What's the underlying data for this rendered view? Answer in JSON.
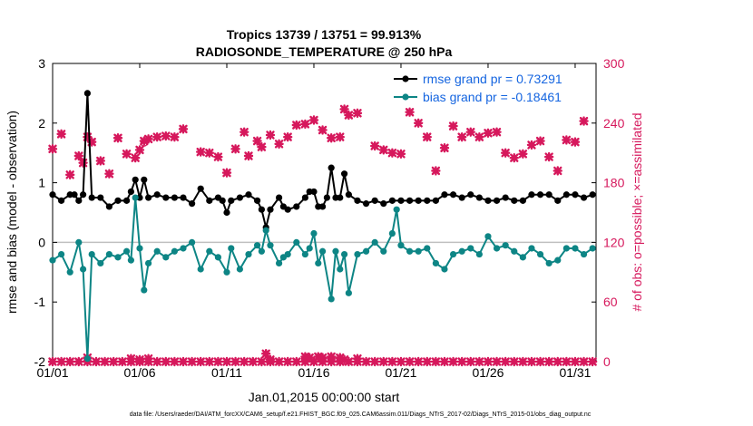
{
  "chart_data": {
    "type": "line",
    "title": "Tropics 13739 / 13751 = 99.913%",
    "subtitle": "RADIOSONDE_TEMPERATURE @ 250 hPa",
    "xlabel": "Jan.01,2015 00:00:00 start",
    "ylabel": "rmse and bias (model - observation)",
    "y2label": "# of obs: o=possible; ×=assimilated",
    "footnote": "data file: /Users/raeder/DAI/ATM_forcXX/CAM6_setup/f.e21.FHIST_BGC.f09_025.CAM6assim.011/Diags_NTrS_2017-02/Diags_NTrS_2015-01/obs_diag_output.nc",
    "xlim": [
      1,
      32.2
    ],
    "ylim": [
      -2,
      3
    ],
    "y2lim": [
      0,
      300
    ],
    "x_tick_values": [
      1,
      6,
      11,
      16,
      21,
      26,
      31
    ],
    "x_tick_labels": [
      "01/01",
      "01/06",
      "01/11",
      "01/16",
      "01/21",
      "01/26",
      "01/31"
    ],
    "y_ticks": [
      "3",
      "2",
      "1",
      "0",
      "-1",
      "-2"
    ],
    "y2_ticks": [
      "300",
      "240",
      "180",
      "120",
      "60",
      "0"
    ],
    "legend_position": "top-right",
    "colors": {
      "rmse": "#000000",
      "bias": "#0d8585",
      "obs": "#d6185c",
      "legend_text": "#1565e0",
      "zero_line": "#bfbfbf"
    },
    "series": [
      {
        "name": "rmse grand pr = 0.73291",
        "axis": "left",
        "color": "#000000",
        "points": [
          [
            1.0,
            0.8
          ],
          [
            1.5,
            0.7
          ],
          [
            2.0,
            0.8
          ],
          [
            2.25,
            0.8
          ],
          [
            2.5,
            0.7
          ],
          [
            2.75,
            0.8
          ],
          [
            3.0,
            2.5
          ],
          [
            3.25,
            0.75
          ],
          [
            3.75,
            0.75
          ],
          [
            4.25,
            0.6
          ],
          [
            4.75,
            0.7
          ],
          [
            5.25,
            0.7
          ],
          [
            5.5,
            0.85
          ],
          [
            5.75,
            1.05
          ],
          [
            6.0,
            0.75
          ],
          [
            6.25,
            1.05
          ],
          [
            6.5,
            0.75
          ],
          [
            7.0,
            0.8
          ],
          [
            7.5,
            0.75
          ],
          [
            8.0,
            0.75
          ],
          [
            8.5,
            0.75
          ],
          [
            9.0,
            0.65
          ],
          [
            9.5,
            0.9
          ],
          [
            10.0,
            0.7
          ],
          [
            10.5,
            0.75
          ],
          [
            10.75,
            0.7
          ],
          [
            11.0,
            0.5
          ],
          [
            11.25,
            0.7
          ],
          [
            11.75,
            0.75
          ],
          [
            12.25,
            0.8
          ],
          [
            12.75,
            0.7
          ],
          [
            13.0,
            0.55
          ],
          [
            13.25,
            0.25
          ],
          [
            13.5,
            0.55
          ],
          [
            14.0,
            0.75
          ],
          [
            14.25,
            0.6
          ],
          [
            14.5,
            0.55
          ],
          [
            15.0,
            0.6
          ],
          [
            15.5,
            0.75
          ],
          [
            15.75,
            0.85
          ],
          [
            16.0,
            0.85
          ],
          [
            16.25,
            0.6
          ],
          [
            16.5,
            0.6
          ],
          [
            16.75,
            0.75
          ],
          [
            17.0,
            1.25
          ],
          [
            17.25,
            0.75
          ],
          [
            17.5,
            0.75
          ],
          [
            17.75,
            1.15
          ],
          [
            18.0,
            0.8
          ],
          [
            18.5,
            0.7
          ],
          [
            19.0,
            0.65
          ],
          [
            19.5,
            0.7
          ],
          [
            20.0,
            0.65
          ],
          [
            20.5,
            0.7
          ],
          [
            21.0,
            0.7
          ],
          [
            21.5,
            0.7
          ],
          [
            22.0,
            0.7
          ],
          [
            22.5,
            0.7
          ],
          [
            23.0,
            0.7
          ],
          [
            23.5,
            0.8
          ],
          [
            24.0,
            0.8
          ],
          [
            24.5,
            0.75
          ],
          [
            25.0,
            0.8
          ],
          [
            25.5,
            0.75
          ],
          [
            26.0,
            0.7
          ],
          [
            26.5,
            0.7
          ],
          [
            27.0,
            0.75
          ],
          [
            27.5,
            0.7
          ],
          [
            28.0,
            0.7
          ],
          [
            28.5,
            0.8
          ],
          [
            29.0,
            0.8
          ],
          [
            29.5,
            0.8
          ],
          [
            30.0,
            0.7
          ],
          [
            30.5,
            0.8
          ],
          [
            31.0,
            0.8
          ],
          [
            31.5,
            0.75
          ],
          [
            32.0,
            0.8
          ]
        ]
      },
      {
        "name": "bias grand pr = -0.18461",
        "axis": "left",
        "color": "#0d8585",
        "points": [
          [
            1.0,
            -0.3
          ],
          [
            1.5,
            -0.2
          ],
          [
            2.0,
            -0.5
          ],
          [
            2.5,
            0.0
          ],
          [
            2.75,
            -0.45
          ],
          [
            3.0,
            -1.95
          ],
          [
            3.25,
            -0.2
          ],
          [
            3.75,
            -0.35
          ],
          [
            4.25,
            -0.2
          ],
          [
            4.75,
            -0.25
          ],
          [
            5.25,
            -0.15
          ],
          [
            5.5,
            -0.3
          ],
          [
            5.75,
            0.75
          ],
          [
            6.0,
            -0.1
          ],
          [
            6.25,
            -0.8
          ],
          [
            6.5,
            -0.35
          ],
          [
            7.0,
            -0.15
          ],
          [
            7.5,
            -0.25
          ],
          [
            8.0,
            -0.15
          ],
          [
            8.5,
            -0.1
          ],
          [
            9.0,
            0.0
          ],
          [
            9.5,
            -0.45
          ],
          [
            10.0,
            -0.15
          ],
          [
            10.5,
            -0.25
          ],
          [
            11.0,
            -0.5
          ],
          [
            11.25,
            -0.1
          ],
          [
            11.75,
            -0.45
          ],
          [
            12.25,
            -0.2
          ],
          [
            12.75,
            -0.05
          ],
          [
            13.0,
            -0.15
          ],
          [
            13.25,
            0.2
          ],
          [
            13.5,
            -0.05
          ],
          [
            14.0,
            -0.35
          ],
          [
            14.25,
            -0.25
          ],
          [
            14.5,
            -0.2
          ],
          [
            15.0,
            0.0
          ],
          [
            15.5,
            -0.2
          ],
          [
            15.75,
            -0.1
          ],
          [
            16.0,
            0.15
          ],
          [
            16.25,
            -0.35
          ],
          [
            16.5,
            -0.15
          ],
          [
            17.0,
            -0.95
          ],
          [
            17.25,
            -0.15
          ],
          [
            17.5,
            -0.45
          ],
          [
            17.75,
            -0.2
          ],
          [
            18.0,
            -0.85
          ],
          [
            18.5,
            -0.2
          ],
          [
            19.0,
            -0.15
          ],
          [
            19.5,
            0.0
          ],
          [
            20.0,
            -0.15
          ],
          [
            20.5,
            0.15
          ],
          [
            20.75,
            0.55
          ],
          [
            21.0,
            -0.05
          ],
          [
            21.5,
            -0.15
          ],
          [
            22.0,
            -0.15
          ],
          [
            22.5,
            -0.1
          ],
          [
            23.0,
            -0.35
          ],
          [
            23.5,
            -0.45
          ],
          [
            24.0,
            -0.2
          ],
          [
            24.5,
            -0.15
          ],
          [
            25.0,
            -0.1
          ],
          [
            25.5,
            -0.2
          ],
          [
            26.0,
            0.1
          ],
          [
            26.5,
            -0.1
          ],
          [
            27.0,
            -0.05
          ],
          [
            27.5,
            -0.15
          ],
          [
            28.0,
            -0.25
          ],
          [
            28.5,
            -0.1
          ],
          [
            29.0,
            -0.2
          ],
          [
            29.5,
            -0.35
          ],
          [
            30.0,
            -0.3
          ],
          [
            30.5,
            -0.1
          ],
          [
            31.0,
            -0.1
          ],
          [
            31.5,
            -0.2
          ],
          [
            32.0,
            -0.1
          ]
        ]
      },
      {
        "name": "possible obs (o)",
        "axis": "right",
        "color": "#d6185c",
        "marker": "o",
        "points": [
          [
            6.25,
            220
          ]
        ]
      },
      {
        "name": "assimilated obs (×)",
        "axis": "right",
        "color": "#d6185c",
        "marker": "x",
        "points": [
          [
            1.0,
            214
          ],
          [
            1.5,
            229
          ],
          [
            2.0,
            188
          ],
          [
            2.5,
            207
          ],
          [
            2.75,
            200
          ],
          [
            3.0,
            226
          ],
          [
            3.25,
            221
          ],
          [
            3.75,
            202
          ],
          [
            4.25,
            189
          ],
          [
            4.75,
            225
          ],
          [
            5.25,
            209
          ],
          [
            5.75,
            205
          ],
          [
            6.0,
            213
          ],
          [
            6.25,
            222
          ],
          [
            6.5,
            224
          ],
          [
            7.0,
            226
          ],
          [
            7.5,
            227
          ],
          [
            8.0,
            226
          ],
          [
            8.5,
            234
          ],
          [
            9.5,
            211
          ],
          [
            10.0,
            210
          ],
          [
            10.5,
            206
          ],
          [
            11.0,
            190
          ],
          [
            11.5,
            214
          ],
          [
            12.0,
            231
          ],
          [
            12.25,
            207
          ],
          [
            12.75,
            222
          ],
          [
            13.0,
            216
          ],
          [
            13.5,
            228
          ],
          [
            14.0,
            219
          ],
          [
            14.5,
            226
          ],
          [
            15.0,
            238
          ],
          [
            15.5,
            239
          ],
          [
            16.0,
            243
          ],
          [
            16.5,
            233
          ],
          [
            17.0,
            225
          ],
          [
            17.5,
            226
          ],
          [
            17.75,
            254
          ],
          [
            18.0,
            248
          ],
          [
            18.5,
            250
          ],
          [
            19.5,
            217
          ],
          [
            20.0,
            213
          ],
          [
            20.5,
            210
          ],
          [
            21.0,
            209
          ],
          [
            21.5,
            251
          ],
          [
            22.0,
            240
          ],
          [
            22.5,
            226
          ],
          [
            23.0,
            192
          ],
          [
            23.5,
            215
          ],
          [
            24.0,
            237
          ],
          [
            24.5,
            226
          ],
          [
            25.0,
            231
          ],
          [
            25.5,
            226
          ],
          [
            26.0,
            230
          ],
          [
            26.5,
            231
          ],
          [
            27.0,
            210
          ],
          [
            27.5,
            205
          ],
          [
            28.0,
            209
          ],
          [
            28.5,
            218
          ],
          [
            29.0,
            222
          ],
          [
            29.5,
            206
          ],
          [
            30.0,
            192
          ],
          [
            30.5,
            223
          ],
          [
            31.0,
            221
          ],
          [
            31.5,
            242
          ],
          [
            1.0,
            0
          ],
          [
            1.5,
            0
          ],
          [
            2.0,
            0
          ],
          [
            2.5,
            0
          ],
          [
            3.0,
            0
          ],
          [
            3.5,
            0
          ],
          [
            4.0,
            0
          ],
          [
            4.5,
            0
          ],
          [
            5.0,
            0
          ],
          [
            5.5,
            0
          ],
          [
            6.0,
            0
          ],
          [
            6.5,
            0
          ],
          [
            7.0,
            0
          ],
          [
            7.5,
            0
          ],
          [
            8.0,
            0
          ],
          [
            8.5,
            0
          ],
          [
            9.0,
            0
          ],
          [
            9.5,
            0
          ],
          [
            10.0,
            0
          ],
          [
            10.5,
            0
          ],
          [
            11.0,
            0
          ],
          [
            11.5,
            0
          ],
          [
            12.0,
            0
          ],
          [
            12.5,
            0
          ],
          [
            13.0,
            0
          ],
          [
            13.5,
            0
          ],
          [
            14.0,
            0
          ],
          [
            14.5,
            0
          ],
          [
            15.0,
            0
          ],
          [
            15.5,
            0
          ],
          [
            16.0,
            0
          ],
          [
            16.5,
            0
          ],
          [
            17.0,
            0
          ],
          [
            17.5,
            0
          ],
          [
            18.0,
            0
          ],
          [
            18.5,
            0
          ],
          [
            19.0,
            0
          ],
          [
            19.5,
            0
          ],
          [
            20.0,
            0
          ],
          [
            20.5,
            0
          ],
          [
            21.0,
            0
          ],
          [
            21.5,
            0
          ],
          [
            22.0,
            0
          ],
          [
            22.5,
            0
          ],
          [
            23.0,
            0
          ],
          [
            23.5,
            0
          ],
          [
            24.0,
            0
          ],
          [
            24.5,
            0
          ],
          [
            25.0,
            0
          ],
          [
            25.5,
            0
          ],
          [
            26.0,
            0
          ],
          [
            26.5,
            0
          ],
          [
            27.0,
            0
          ],
          [
            27.5,
            0
          ],
          [
            28.0,
            0
          ],
          [
            28.5,
            0
          ],
          [
            29.0,
            0
          ],
          [
            29.5,
            0
          ],
          [
            30.0,
            0
          ],
          [
            30.5,
            0
          ],
          [
            31.0,
            0
          ],
          [
            31.5,
            0
          ],
          [
            32.0,
            0
          ],
          [
            3.0,
            4
          ],
          [
            5.5,
            3
          ],
          [
            6.0,
            2
          ],
          [
            6.5,
            3
          ],
          [
            13.25,
            8
          ],
          [
            13.5,
            2
          ],
          [
            15.5,
            5
          ],
          [
            15.75,
            4
          ],
          [
            16.25,
            5
          ],
          [
            16.5,
            4
          ],
          [
            17.0,
            5
          ],
          [
            17.5,
            4
          ],
          [
            17.75,
            2
          ],
          [
            18.5,
            3
          ]
        ]
      }
    ]
  }
}
